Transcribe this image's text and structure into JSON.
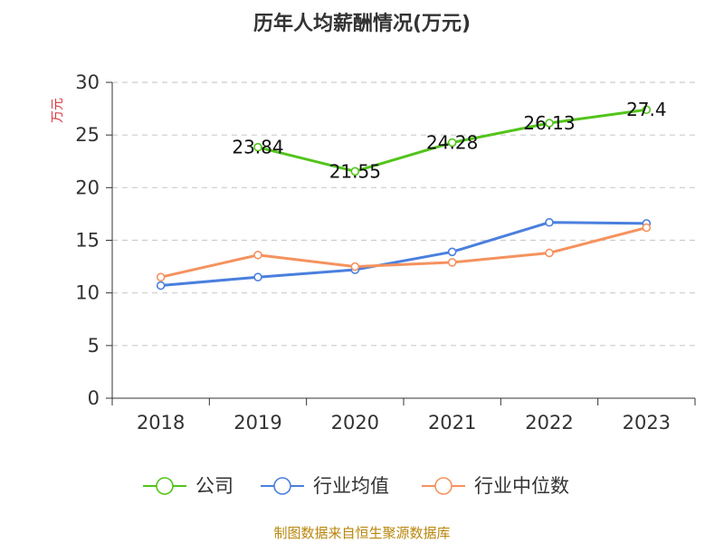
{
  "chart_data": {
    "type": "line",
    "title": "历年人均薪酬情况(万元)",
    "ylabel": "万元",
    "categories": [
      "2018",
      "2019",
      "2020",
      "2021",
      "2022",
      "2023"
    ],
    "ylim": [
      0,
      30
    ],
    "yticks": [
      0,
      5,
      10,
      15,
      20,
      25,
      30
    ],
    "grid": true,
    "series": [
      {
        "name": "公司",
        "color": "#52c41a",
        "values": [
          null,
          23.84,
          21.55,
          24.28,
          26.13,
          27.4
        ],
        "show_labels": true
      },
      {
        "name": "行业均值",
        "color": "#4a7fde",
        "values": [
          10.7,
          11.5,
          12.2,
          13.9,
          16.7,
          16.6
        ],
        "show_labels": false
      },
      {
        "name": "行业中位数",
        "color": "#f5925e",
        "values": [
          11.5,
          13.6,
          12.5,
          12.9,
          13.8,
          16.2
        ],
        "show_labels": false
      }
    ],
    "legend_position": "bottom"
  },
  "footer": "制图数据来自恒生聚源数据库",
  "colors": {
    "ylabel": "#d9363e",
    "footer": "#b8860b",
    "grid": "#cccccc",
    "axis": "#333333"
  }
}
